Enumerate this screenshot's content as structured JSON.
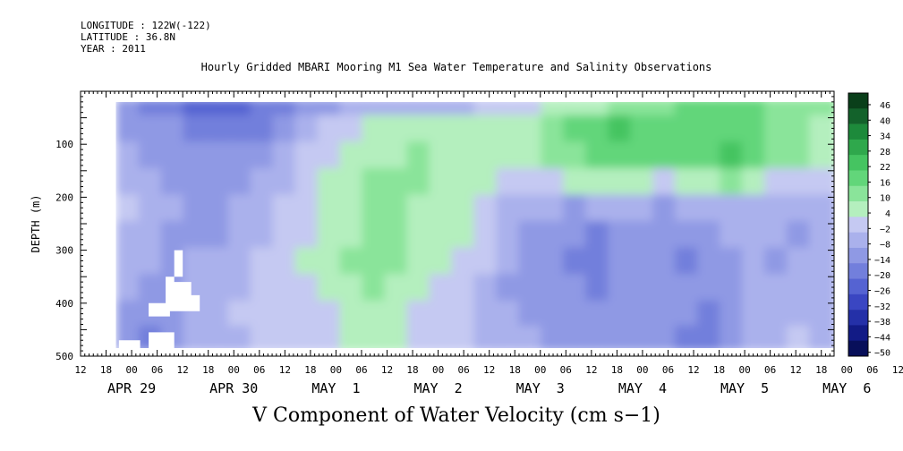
{
  "header": {
    "longitude": "LONGITUDE : 122W(-122)",
    "latitude": "LATITUDE : 36.8N",
    "year": "YEAR : 2011"
  },
  "chart_data": {
    "type": "heatmap",
    "title": "Hourly Gridded MBARI Mooring M1 Sea Water Temperature and Salinity Observations",
    "xlabel_caption": "V Component of Water Velocity (cm s−1)",
    "ylabel": "DEPTH (m)",
    "y_range": [
      500,
      0
    ],
    "y_ticks": [
      100,
      200,
      300,
      400,
      500
    ],
    "x_range_hours": [
      -12,
      165
    ],
    "x_hour_ticks": [
      "12",
      "18",
      "00",
      "06",
      "12",
      "18",
      "00",
      "06",
      "12",
      "18",
      "00",
      "06",
      "12",
      "18",
      "00",
      "06",
      "12",
      "18",
      "00",
      "06",
      "12",
      "18",
      "00",
      "06",
      "12",
      "18",
      "00",
      "06",
      "12",
      "18",
      "00",
      "06",
      "12"
    ],
    "day_labels": [
      "APR 29",
      "APR 30",
      "MAY  1",
      "MAY  2",
      "MAY  3",
      "MAY  4",
      "MAY  5",
      "MAY  6"
    ],
    "colorbar": {
      "levels": [
        "46",
        "40",
        "34",
        "28",
        "22",
        "16",
        "10",
        "4",
        "−2",
        "−8",
        "−14",
        "−20",
        "−26",
        "−32",
        "−38",
        "−44",
        "−50"
      ],
      "range": [
        -50,
        52
      ],
      "colors": [
        "#0a3f1a",
        "#13622b",
        "#1d8a3b",
        "#2fa84c",
        "#45c461",
        "#62d67a",
        "#8ae49a",
        "#b4efbe",
        "#c5c9f2",
        "#aab1ec",
        "#8f99e4",
        "#727fdc",
        "#5563d2",
        "#3a46c2",
        "#2430a8",
        "#121b86",
        "#080f5a"
      ]
    },
    "series": [
      {
        "depth_m": 25,
        "v": [
          -12,
          -14,
          -18,
          -22,
          -24,
          -20,
          -18,
          -14,
          -10,
          -8,
          -6,
          -6,
          -4,
          -4,
          -4,
          -2,
          0,
          2,
          4,
          6,
          8,
          10,
          12,
          14,
          16,
          18,
          20,
          20,
          18,
          16,
          16,
          14
        ]
      },
      {
        "depth_m": 75,
        "v": [
          -8,
          -10,
          -12,
          -16,
          -18,
          -16,
          -14,
          -10,
          -6,
          0,
          4,
          6,
          6,
          8,
          6,
          6,
          6,
          8,
          10,
          14,
          18,
          22,
          24,
          22,
          18,
          18,
          22,
          22,
          20,
          16,
          14,
          10
        ]
      },
      {
        "depth_m": 125,
        "v": [
          -6,
          -8,
          -10,
          -12,
          -12,
          -10,
          -8,
          -4,
          0,
          4,
          8,
          10,
          10,
          12,
          10,
          8,
          8,
          8,
          10,
          12,
          16,
          20,
          22,
          20,
          18,
          18,
          22,
          24,
          20,
          16,
          12,
          8
        ]
      },
      {
        "depth_m": 175,
        "v": [
          -4,
          -6,
          -8,
          -10,
          -10,
          -8,
          -6,
          -2,
          2,
          6,
          10,
          12,
          12,
          12,
          10,
          8,
          6,
          4,
          2,
          4,
          6,
          8,
          8,
          6,
          4,
          6,
          10,
          12,
          8,
          4,
          2,
          0
        ]
      },
      {
        "depth_m": 225,
        "v": [
          2,
          -4,
          -6,
          -10,
          -8,
          -6,
          -4,
          2,
          4,
          6,
          10,
          12,
          12,
          10,
          10,
          6,
          4,
          -2,
          -6,
          -6,
          -8,
          -6,
          -4,
          -6,
          -8,
          -6,
          -4,
          -2,
          -2,
          -4,
          -6,
          -6
        ]
      },
      {
        "depth_m": 275,
        "v": [
          -2,
          -6,
          -8,
          -8,
          -8,
          -4,
          -2,
          4,
          4,
          6,
          10,
          14,
          12,
          10,
          8,
          6,
          2,
          -4,
          -8,
          -10,
          -12,
          -14,
          -10,
          -8,
          -10,
          -12,
          -8,
          -6,
          -4,
          -6,
          -8,
          -6
        ]
      },
      {
        "depth_m": 325,
        "v": [
          -4,
          -6,
          -10,
          -6,
          -6,
          -2,
          2,
          4,
          6,
          8,
          12,
          14,
          12,
          8,
          6,
          4,
          0,
          -6,
          -10,
          -12,
          -14,
          -16,
          -12,
          -10,
          -12,
          -14,
          -10,
          -8,
          -6,
          -8,
          -6,
          -4
        ]
      },
      {
        "depth_m": 375,
        "v": [
          -6,
          -8,
          -10,
          -6,
          -4,
          -2,
          0,
          2,
          4,
          6,
          10,
          12,
          10,
          6,
          4,
          2,
          -2,
          -8,
          -10,
          -12,
          -12,
          -14,
          -12,
          -10,
          -12,
          -12,
          -10,
          -8,
          -6,
          -6,
          -4,
          -2
        ]
      },
      {
        "depth_m": 425,
        "v": [
          -10,
          -12,
          -8,
          -4,
          -2,
          0,
          2,
          4,
          2,
          4,
          8,
          10,
          8,
          4,
          2,
          0,
          -4,
          -6,
          -8,
          -10,
          -10,
          -10,
          -10,
          -8,
          -10,
          -12,
          -14,
          -10,
          -6,
          -4,
          -2,
          -2
        ]
      },
      {
        "depth_m": 470,
        "v": [
          -12,
          -14,
          -10,
          -6,
          -4,
          -2,
          0,
          2,
          4,
          4,
          6,
          8,
          6,
          4,
          2,
          0,
          -2,
          -4,
          -6,
          -8,
          -8,
          -10,
          -8,
          -8,
          -10,
          -14,
          -16,
          -10,
          -6,
          -2,
          0,
          -2
        ]
      }
    ],
    "series_x_range_hours": [
      -3,
      165
    ]
  }
}
